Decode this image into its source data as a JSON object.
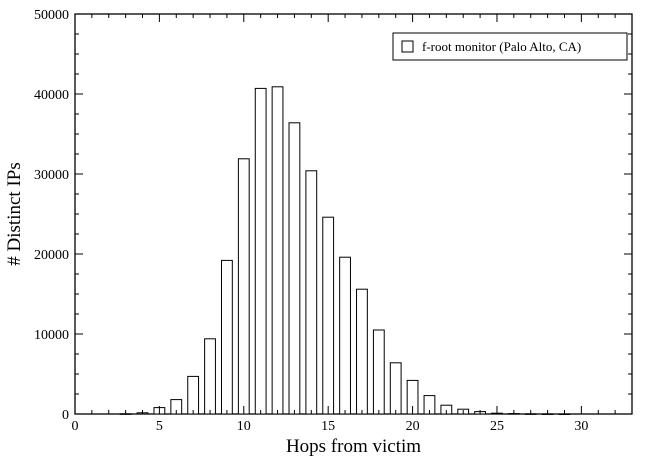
{
  "chart_data": {
    "type": "bar",
    "x": [
      1,
      2,
      3,
      4,
      5,
      6,
      7,
      8,
      9,
      10,
      11,
      12,
      13,
      14,
      15,
      16,
      17,
      18,
      19,
      20,
      21,
      22,
      23,
      24,
      25,
      26,
      27,
      28,
      29,
      30,
      31,
      32
    ],
    "series": [
      {
        "name": "f-root monitor (Palo Alto, CA)",
        "values": [
          0,
          0,
          20,
          150,
          800,
          1800,
          4700,
          9400,
          19200,
          31900,
          40700,
          40900,
          36400,
          30400,
          24600,
          19600,
          15600,
          10500,
          6400,
          4200,
          2300,
          1100,
          600,
          300,
          100,
          50,
          20,
          10,
          5,
          0,
          0,
          0
        ]
      }
    ],
    "xlabel": "Hops from victim",
    "ylabel": "# Distinct IPs",
    "xlim": [
      0,
      33
    ],
    "ylim": [
      0,
      50000
    ],
    "xticks": [
      0,
      5,
      10,
      15,
      20,
      25,
      30
    ],
    "yticks": [
      0,
      10000,
      20000,
      30000,
      40000,
      50000
    ],
    "legend_position": "top-right",
    "grid": false,
    "colors": {
      "bar_fill": "#ffffff",
      "bar_stroke": "#000000"
    }
  }
}
